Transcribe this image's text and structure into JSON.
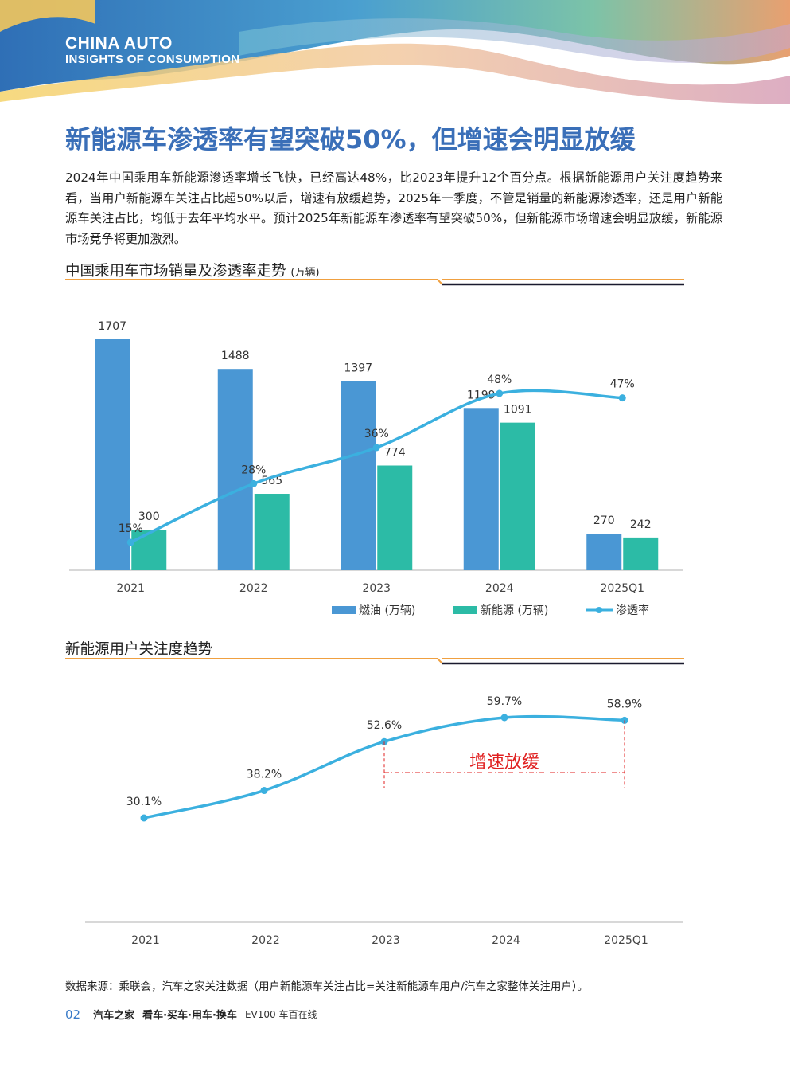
{
  "header": {
    "brand_line1": "CHINA AUTO",
    "brand_line2": "INSIGHTS OF CONSUMPTION"
  },
  "title": "新能源车渗透率有望突破50%，但增速会明显放缓",
  "intro": "2024年中国乘用车新能源渗透率增长飞快，已经高达48%，比2023年提升12个百分点。根据新能源用户关注度趋势来看，当用户新能源车关注占比超50%以后，增速有放缓趋势，2025年一季度，不管是销量的新能源渗透率，还是用户新能源车关注占比，均低于去年平均水平。预计2025年新能源车渗透率有望突破50%，但新能源市场增速会明显放缓，新能源市场竞争将更加激烈。",
  "section1": {
    "title": "中国乘用车市场销量及渗透率走势",
    "unit": "(万辆)"
  },
  "section2": {
    "title": "新能源用户关注度趋势"
  },
  "colors": {
    "fuel": "#4a97d4",
    "nev": "#2cbba6",
    "line": "#3bb0df",
    "title": "#3a6fb8",
    "accent": "#f0a040",
    "red": "#e02020"
  },
  "chart_data": [
    {
      "type": "bar",
      "categories": [
        "2021",
        "2022",
        "2023",
        "2024",
        "2025Q1"
      ],
      "series": [
        {
          "name": "燃油 (万辆)",
          "type": "bar",
          "values": [
            1707,
            1488,
            1397,
            1199,
            270
          ]
        },
        {
          "name": "新能源 (万辆)",
          "type": "bar",
          "values": [
            300,
            565,
            774,
            1091,
            242
          ]
        },
        {
          "name": "渗透率",
          "type": "line",
          "values": [
            15,
            28,
            36,
            48,
            47
          ],
          "labels": [
            "15%",
            "28%",
            "36%",
            "48%",
            "47%"
          ]
        }
      ],
      "legend": "bottom",
      "grid": false
    },
    {
      "type": "line",
      "categories": [
        "2021",
        "2022",
        "2023",
        "2024",
        "2025Q1"
      ],
      "series": [
        {
          "values": [
            30.1,
            38.2,
            52.6,
            59.7,
            58.9
          ],
          "labels": [
            "30.1%",
            "38.2%",
            "52.6%",
            "59.7%",
            "58.9%"
          ]
        }
      ],
      "annotation": {
        "text": "增速放缓",
        "from": "2023",
        "to": "2025Q1"
      },
      "grid": false
    }
  ],
  "source": "数据来源：乘联会，汽车之家关注数据（用户新能源车关注占比=关注新能源车用户/汽车之家整体关注用户）。",
  "footer": {
    "page": "02",
    "logo1": "汽车之家",
    "slogan": "看车·买车·用车·换车",
    "logo2": "EV100 车百在线"
  }
}
